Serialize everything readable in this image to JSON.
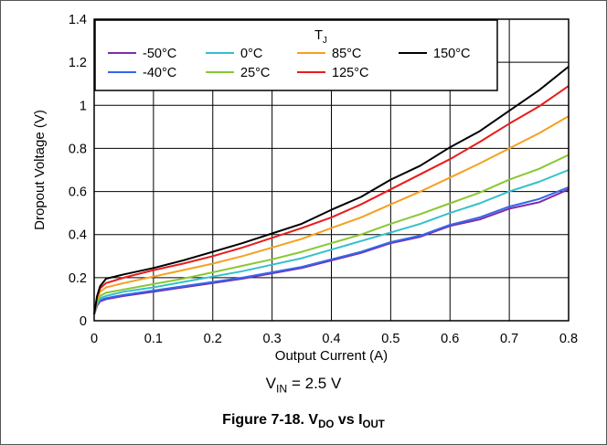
{
  "chart_data": {
    "type": "line",
    "xlabel": "Output Current (A)",
    "ylabel": "Dropout Voltage (V)",
    "xlim": [
      0,
      0.8
    ],
    "ylim": [
      0,
      1.4
    ],
    "x_ticks": [
      "0",
      "0.1",
      "0.2",
      "0.3",
      "0.4",
      "0.5",
      "0.6",
      "0.7",
      "0.8"
    ],
    "y_ticks": [
      "0",
      "0.2",
      "0.4",
      "0.6",
      "0.8",
      "1",
      "1.2",
      "1.4"
    ],
    "grid": true,
    "legend_title": "T",
    "legend_title_sub": "J",
    "legend_position": "top-right",
    "x": [
      0,
      0.005,
      0.01,
      0.02,
      0.05,
      0.1,
      0.15,
      0.2,
      0.25,
      0.3,
      0.35,
      0.4,
      0.45,
      0.5,
      0.55,
      0.6,
      0.65,
      0.7,
      0.75,
      0.8
    ],
    "series": [
      {
        "name": "-50°C",
        "color": "#7b2fa6",
        "values": [
          0.03,
          0.07,
          0.09,
          0.1,
          0.115,
          0.135,
          0.155,
          0.175,
          0.195,
          0.22,
          0.245,
          0.28,
          0.315,
          0.36,
          0.39,
          0.44,
          0.47,
          0.52,
          0.55,
          0.61
        ]
      },
      {
        "name": "-40°C",
        "color": "#3366ee",
        "values": [
          0.03,
          0.07,
          0.095,
          0.105,
          0.12,
          0.14,
          0.16,
          0.18,
          0.2,
          0.225,
          0.25,
          0.285,
          0.32,
          0.365,
          0.395,
          0.445,
          0.48,
          0.53,
          0.565,
          0.62
        ]
      },
      {
        "name": "0°C",
        "color": "#33c0cc",
        "values": [
          0.03,
          0.08,
          0.105,
          0.115,
          0.135,
          0.155,
          0.18,
          0.205,
          0.23,
          0.26,
          0.29,
          0.33,
          0.37,
          0.41,
          0.45,
          0.5,
          0.545,
          0.6,
          0.645,
          0.7
        ]
      },
      {
        "name": "25°C",
        "color": "#88c833",
        "values": [
          0.03,
          0.085,
          0.115,
          0.13,
          0.145,
          0.17,
          0.195,
          0.225,
          0.255,
          0.285,
          0.32,
          0.36,
          0.4,
          0.45,
          0.495,
          0.545,
          0.595,
          0.655,
          0.705,
          0.77
        ]
      },
      {
        "name": "85°C",
        "color": "#f5a020",
        "values": [
          0.03,
          0.1,
          0.135,
          0.155,
          0.175,
          0.205,
          0.235,
          0.265,
          0.3,
          0.34,
          0.38,
          0.43,
          0.48,
          0.54,
          0.6,
          0.665,
          0.73,
          0.8,
          0.87,
          0.95
        ]
      },
      {
        "name": "125°C",
        "color": "#e81c1c",
        "values": [
          0.03,
          0.11,
          0.15,
          0.175,
          0.2,
          0.235,
          0.265,
          0.3,
          0.34,
          0.385,
          0.43,
          0.48,
          0.54,
          0.61,
          0.68,
          0.75,
          0.83,
          0.915,
          0.995,
          1.09
        ]
      },
      {
        "name": "150°C",
        "color": "#000000",
        "values": [
          0.03,
          0.115,
          0.16,
          0.195,
          0.215,
          0.245,
          0.28,
          0.32,
          0.36,
          0.405,
          0.45,
          0.515,
          0.575,
          0.655,
          0.72,
          0.805,
          0.88,
          0.975,
          1.07,
          1.18
        ]
      }
    ]
  },
  "condition": {
    "prefix": "V",
    "sub": "IN",
    "suffix": " = 2.5 V"
  },
  "caption": {
    "prefix": "Figure 7-18. V",
    "sub1": "DO",
    "middle": " vs I",
    "sub2": "OUT"
  }
}
